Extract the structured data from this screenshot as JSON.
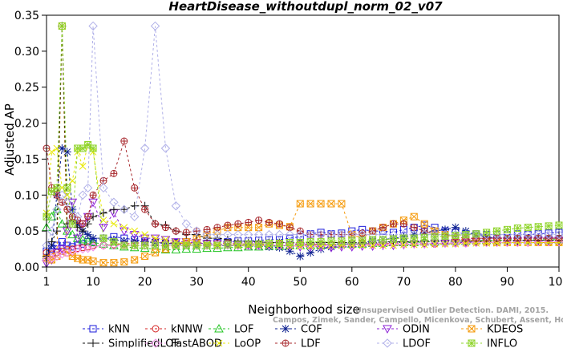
{
  "watermark": {
    "line1": "Unsupervised Outlier Detection. DAMI, 2015.",
    "line2": "Campos, Zimek, Sander, Campello, Micenkova, Schubert, Assent, Houle"
  },
  "chart_data": {
    "type": "line",
    "title": "HeartDisease_withoutdupl_norm_02_v07",
    "xlabel": "Neighborhood size",
    "ylabel": "Adjusted AP",
    "xlim": [
      1,
      100
    ],
    "ylim": [
      0,
      0.35
    ],
    "xticks": [
      1,
      10,
      20,
      30,
      40,
      50,
      60,
      70,
      80,
      90,
      100
    ],
    "yticks": [
      0.0,
      0.05,
      0.1,
      0.15,
      0.2,
      0.25,
      0.3,
      0.35
    ],
    "ytick_labels": [
      "0.00",
      "0.05",
      "0.10",
      "0.15",
      "0.20",
      "0.25",
      "0.30",
      "0.35"
    ],
    "legend_position": "bottom",
    "grid": false,
    "x": [
      1,
      2,
      3,
      4,
      5,
      6,
      7,
      8,
      9,
      10,
      12,
      14,
      16,
      18,
      20,
      22,
      24,
      26,
      28,
      30,
      32,
      34,
      36,
      38,
      40,
      42,
      44,
      46,
      48,
      50,
      52,
      54,
      56,
      58,
      60,
      62,
      64,
      66,
      68,
      70,
      72,
      74,
      76,
      78,
      80,
      82,
      84,
      86,
      88,
      90,
      92,
      94,
      96,
      98,
      100
    ],
    "series": [
      {
        "name": "kNN",
        "color": "#1a1adb",
        "marker": "square",
        "values": [
          0.022,
          0.025,
          0.03,
          0.035,
          0.03,
          0.028,
          0.03,
          0.032,
          0.035,
          0.035,
          0.04,
          0.042,
          0.04,
          0.038,
          0.036,
          0.034,
          0.033,
          0.034,
          0.033,
          0.032,
          0.033,
          0.034,
          0.035,
          0.036,
          0.036,
          0.037,
          0.038,
          0.038,
          0.04,
          0.042,
          0.046,
          0.048,
          0.046,
          0.047,
          0.05,
          0.052,
          0.05,
          0.05,
          0.048,
          0.052,
          0.055,
          0.058,
          0.055,
          0.05,
          0.048,
          0.046,
          0.046,
          0.045,
          0.045,
          0.045,
          0.046,
          0.045,
          0.046,
          0.047,
          0.048
        ]
      },
      {
        "name": "kNNW",
        "color": "#d42020",
        "marker": "circle",
        "values": [
          0.02,
          0.018,
          0.02,
          0.022,
          0.024,
          0.025,
          0.026,
          0.027,
          0.028,
          0.03,
          0.03,
          0.031,
          0.032,
          0.033,
          0.034,
          0.035,
          0.034,
          0.033,
          0.033,
          0.034,
          0.033,
          0.033,
          0.033,
          0.032,
          0.032,
          0.032,
          0.031,
          0.032,
          0.031,
          0.032,
          0.031,
          0.032,
          0.031,
          0.032,
          0.032,
          0.033,
          0.032,
          0.032,
          0.033,
          0.032,
          0.033,
          0.033,
          0.032,
          0.033,
          0.033,
          0.033,
          0.034,
          0.034,
          0.034,
          0.034,
          0.034,
          0.034,
          0.034,
          0.034,
          0.034
        ]
      },
      {
        "name": "LOF",
        "color": "#22c422",
        "marker": "triangle",
        "values": [
          0.055,
          0.07,
          0.08,
          0.06,
          0.05,
          0.045,
          0.04,
          0.038,
          0.036,
          0.034,
          0.032,
          0.03,
          0.028,
          0.027,
          0.026,
          0.025,
          0.024,
          0.024,
          0.025,
          0.025,
          0.026,
          0.026,
          0.027,
          0.027,
          0.028,
          0.028,
          0.029,
          0.029,
          0.03,
          0.03,
          0.03,
          0.031,
          0.031,
          0.032,
          0.032,
          0.032,
          0.033,
          0.033,
          0.034,
          0.034,
          0.034,
          0.035,
          0.035,
          0.036,
          0.036,
          0.036,
          0.037,
          0.037,
          0.037,
          0.038,
          0.038,
          0.038,
          0.038,
          0.038,
          0.038
        ]
      },
      {
        "name": "COF",
        "color": "#0b1f8f",
        "marker": "asterisk",
        "values": [
          0.012,
          0.03,
          0.1,
          0.165,
          0.16,
          0.08,
          0.06,
          0.05,
          0.045,
          0.04,
          0.04,
          0.038,
          0.036,
          0.036,
          0.035,
          0.034,
          0.033,
          0.032,
          0.032,
          0.031,
          0.031,
          0.03,
          0.03,
          0.03,
          0.029,
          0.029,
          0.028,
          0.027,
          0.022,
          0.015,
          0.02,
          0.025,
          0.028,
          0.03,
          0.032,
          0.034,
          0.036,
          0.038,
          0.04,
          0.042,
          0.045,
          0.048,
          0.05,
          0.052,
          0.055,
          0.05,
          0.045,
          0.042,
          0.04,
          0.04,
          0.04,
          0.04,
          0.04,
          0.04,
          0.04
        ]
      },
      {
        "name": "ODIN",
        "color": "#8b1fd6",
        "marker": "triangle-down",
        "values": [
          0.005,
          0.01,
          0.02,
          0.025,
          0.05,
          0.09,
          0.04,
          0.06,
          0.07,
          0.09,
          0.055,
          0.075,
          0.05,
          0.045,
          0.04,
          0.04,
          0.038,
          0.035,
          0.035,
          0.034,
          0.032,
          0.032,
          0.031,
          0.03,
          0.03,
          0.03,
          0.03,
          0.03,
          0.029,
          0.028,
          0.028,
          0.028,
          0.027,
          0.028,
          0.028,
          0.029,
          0.029,
          0.03,
          0.03,
          0.031,
          0.032,
          0.032,
          0.033,
          0.033,
          0.034,
          0.034,
          0.035,
          0.035,
          0.036,
          0.036,
          0.036,
          0.037,
          0.037,
          0.037,
          0.037
        ]
      },
      {
        "name": "KDEOS",
        "color": "#f59a0b",
        "marker": "square-x",
        "values": [
          0.012,
          0.01,
          0.015,
          0.335,
          0.02,
          0.015,
          0.012,
          0.01,
          0.01,
          0.008,
          0.006,
          0.006,
          0.007,
          0.01,
          0.015,
          0.02,
          0.025,
          0.03,
          0.035,
          0.04,
          0.045,
          0.05,
          0.055,
          0.055,
          0.055,
          0.055,
          0.06,
          0.058,
          0.056,
          0.088,
          0.088,
          0.088,
          0.088,
          0.088,
          0.045,
          0.04,
          0.05,
          0.055,
          0.06,
          0.065,
          0.07,
          0.06,
          0.05,
          0.045,
          0.04,
          0.038,
          0.036,
          0.035,
          0.034,
          0.034,
          0.034,
          0.034,
          0.034,
          0.034,
          0.034
        ]
      },
      {
        "name": "SimplifiedLOF",
        "color": "#111111",
        "marker": "plus",
        "values": [
          0.015,
          0.035,
          0.05,
          0.335,
          0.06,
          0.065,
          0.055,
          0.05,
          0.06,
          0.07,
          0.075,
          0.08,
          0.08,
          0.085,
          0.085,
          0.06,
          0.058,
          0.05,
          0.045,
          0.045,
          0.04,
          0.04,
          0.038,
          0.036,
          0.036,
          0.035,
          0.034,
          0.034,
          0.034,
          0.034,
          0.034,
          0.034,
          0.034,
          0.034,
          0.034,
          0.034,
          0.034,
          0.035,
          0.035,
          0.035,
          0.035,
          0.036,
          0.036,
          0.036,
          0.036,
          0.036,
          0.036,
          0.036,
          0.036,
          0.037,
          0.037,
          0.037,
          0.037,
          0.037,
          0.037
        ]
      },
      {
        "name": "FastABOD",
        "color": "#f28fe8",
        "marker": "diamond",
        "values": [
          0.01,
          0.012,
          0.015,
          0.018,
          0.02,
          0.022,
          0.025,
          0.025,
          0.026,
          0.028,
          0.03,
          0.03,
          0.03,
          0.03,
          0.03,
          0.03,
          0.03,
          0.03,
          0.031,
          0.03,
          0.03,
          0.03,
          0.031,
          0.03,
          0.03,
          0.03,
          0.031,
          0.03,
          0.03,
          0.03,
          0.03,
          0.03,
          0.03,
          0.03,
          0.031,
          0.031,
          0.031,
          0.031,
          0.032,
          0.032,
          0.032,
          0.032,
          0.033,
          0.033,
          0.033,
          0.033,
          0.034,
          0.034,
          0.034,
          0.034,
          0.034,
          0.034,
          0.035,
          0.035,
          0.035
        ]
      },
      {
        "name": "LoOP",
        "color": "#e8e800",
        "marker": "cross",
        "values": [
          0.075,
          0.16,
          0.165,
          0.11,
          0.1,
          0.12,
          0.16,
          0.14,
          0.17,
          0.16,
          0.065,
          0.06,
          0.055,
          0.05,
          0.045,
          0.04,
          0.038,
          0.035,
          0.033,
          0.032,
          0.032,
          0.031,
          0.031,
          0.03,
          0.03,
          0.03,
          0.03,
          0.03,
          0.029,
          0.029,
          0.029,
          0.029,
          0.03,
          0.03,
          0.03,
          0.03,
          0.03,
          0.03,
          0.03,
          0.031,
          0.031,
          0.031,
          0.032,
          0.032,
          0.032,
          0.033,
          0.033,
          0.033,
          0.033,
          0.034,
          0.034,
          0.034,
          0.034,
          0.034,
          0.034
        ]
      },
      {
        "name": "LDF",
        "color": "#a8292e",
        "marker": "circle-plus",
        "values": [
          0.165,
          0.11,
          0.1,
          0.09,
          0.08,
          0.07,
          0.065,
          0.06,
          0.07,
          0.1,
          0.12,
          0.13,
          0.175,
          0.11,
          0.08,
          0.06,
          0.055,
          0.05,
          0.048,
          0.05,
          0.052,
          0.055,
          0.058,
          0.06,
          0.062,
          0.065,
          0.062,
          0.06,
          0.055,
          0.05,
          0.045,
          0.045,
          0.045,
          0.045,
          0.045,
          0.047,
          0.05,
          0.055,
          0.06,
          0.06,
          0.055,
          0.05,
          0.045,
          0.045,
          0.042,
          0.04,
          0.04,
          0.04,
          0.04,
          0.04,
          0.04,
          0.04,
          0.04,
          0.04,
          0.04
        ]
      },
      {
        "name": "LDOF",
        "color": "#b0b0e8",
        "marker": "diamond",
        "values": [
          0.03,
          0.05,
          0.08,
          0.1,
          0.09,
          0.08,
          0.07,
          0.1,
          0.11,
          0.335,
          0.11,
          0.09,
          0.08,
          0.07,
          0.165,
          0.335,
          0.165,
          0.085,
          0.06,
          0.05,
          0.045,
          0.045,
          0.045,
          0.045,
          0.045,
          0.045,
          0.045,
          0.045,
          0.045,
          0.045,
          0.045,
          0.045,
          0.045,
          0.045,
          0.045,
          0.045,
          0.045,
          0.045,
          0.045,
          0.045,
          0.045,
          0.045,
          0.045,
          0.045,
          0.045,
          0.045,
          0.045,
          0.045,
          0.045,
          0.045,
          0.045,
          0.045,
          0.045,
          0.045,
          0.045
        ]
      },
      {
        "name": "INFLO",
        "color": "#8fd42b",
        "marker": "square-cross",
        "values": [
          0.07,
          0.105,
          0.11,
          0.335,
          0.11,
          0.06,
          0.165,
          0.165,
          0.17,
          0.165,
          0.04,
          0.035,
          0.03,
          0.03,
          0.03,
          0.03,
          0.03,
          0.03,
          0.03,
          0.03,
          0.03,
          0.03,
          0.031,
          0.031,
          0.032,
          0.032,
          0.033,
          0.033,
          0.034,
          0.034,
          0.035,
          0.035,
          0.036,
          0.036,
          0.037,
          0.037,
          0.038,
          0.038,
          0.039,
          0.04,
          0.04,
          0.041,
          0.042,
          0.043,
          0.044,
          0.045,
          0.046,
          0.048,
          0.05,
          0.052,
          0.054,
          0.055,
          0.056,
          0.057,
          0.058
        ]
      }
    ]
  }
}
